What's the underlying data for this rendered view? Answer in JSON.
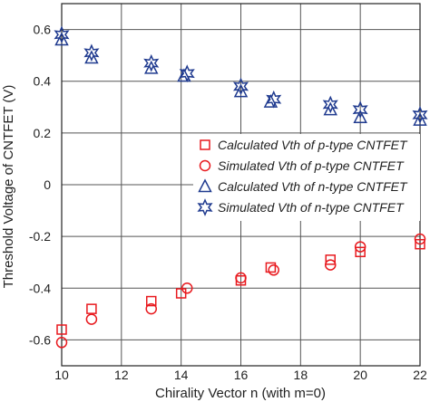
{
  "chart_data": {
    "type": "scatter",
    "title": "",
    "xlabel": "Chirality Vector n (with m=0)",
    "ylabel": "Threshold Voltage of CNTFET (V)",
    "xlim": [
      10,
      22
    ],
    "ylim": [
      -0.7,
      0.7
    ],
    "xticks": [
      10,
      12,
      14,
      16,
      18,
      20,
      22
    ],
    "yticks": [
      -0.6,
      -0.4,
      -0.2,
      0,
      0.2,
      0.4,
      0.6
    ],
    "ytick_labels": [
      "-0.6",
      "-0.4",
      "-0.2",
      "0",
      "0.2",
      "0.4",
      "0.6"
    ],
    "grid": true,
    "legend_position": "right-middle",
    "series": [
      {
        "name": "Calculated Vth of p-type CNTFET",
        "marker": "square",
        "color": "#e8191e",
        "x": [
          10,
          11,
          13,
          14,
          16,
          17,
          19,
          20,
          22
        ],
        "y": [
          -0.56,
          -0.48,
          -0.45,
          -0.42,
          -0.37,
          -0.32,
          -0.29,
          -0.26,
          -0.23
        ]
      },
      {
        "name": "Simulated Vth of p-type CNTFET",
        "marker": "circle",
        "color": "#e8191e",
        "x": [
          10,
          11,
          13,
          14.2,
          16,
          17.1,
          19,
          20,
          22
        ],
        "y": [
          -0.61,
          -0.52,
          -0.48,
          -0.4,
          -0.36,
          -0.33,
          -0.31,
          -0.24,
          -0.21
        ]
      },
      {
        "name": "Calculated Vth of n-type CNTFET",
        "marker": "triangle",
        "color": "#1f3a8f",
        "x": [
          10,
          11,
          13,
          14.1,
          16,
          17,
          19,
          20,
          22
        ],
        "y": [
          0.56,
          0.49,
          0.45,
          0.42,
          0.36,
          0.32,
          0.29,
          0.26,
          0.25
        ]
      },
      {
        "name": "Simulated Vth of n-type CNTFET",
        "marker": "star",
        "color": "#1f3a8f",
        "x": [
          10,
          11,
          13,
          14.2,
          16,
          17.1,
          19,
          20,
          22
        ],
        "y": [
          0.58,
          0.51,
          0.47,
          0.43,
          0.38,
          0.33,
          0.31,
          0.29,
          0.27
        ]
      }
    ]
  }
}
